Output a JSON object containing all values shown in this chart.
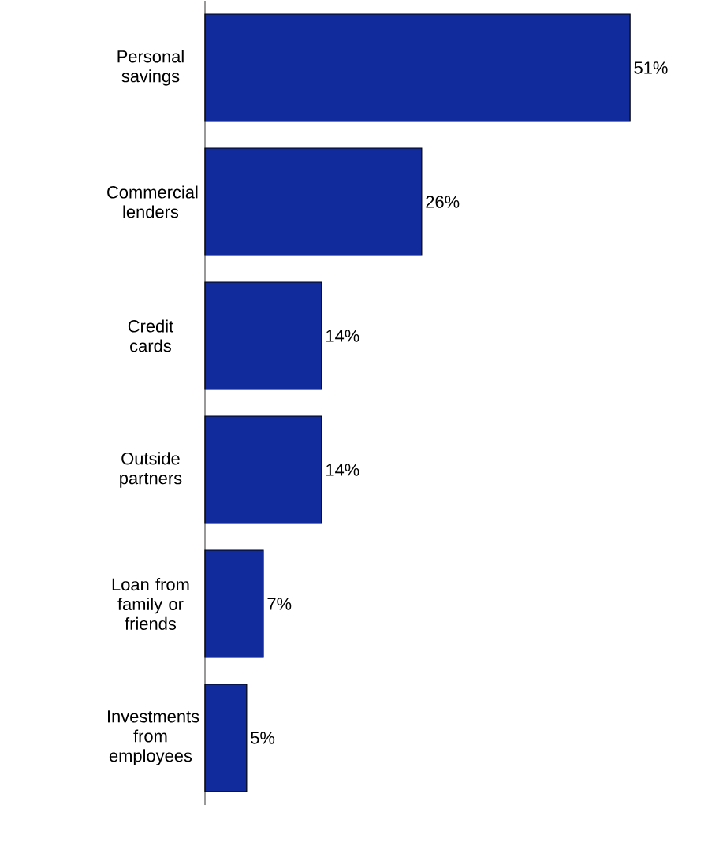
{
  "chart_data": {
    "type": "bar",
    "orientation": "horizontal",
    "categories": [
      "Personal savings",
      "Commercial lenders",
      "Credit cards",
      "Outside partners",
      "Loan from family or friends",
      "Investments from employees"
    ],
    "values": [
      51,
      26,
      14,
      14,
      7,
      5
    ],
    "value_labels": [
      "51%",
      "26%",
      "14%",
      "14%",
      "7%",
      "5%"
    ],
    "color": "#112a9c"
  }
}
